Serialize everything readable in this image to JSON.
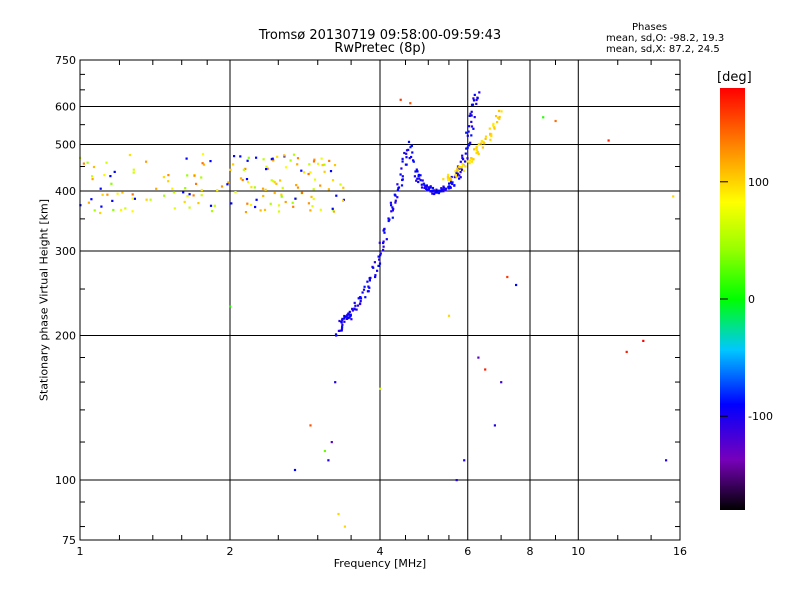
{
  "header": {
    "title1": "Tromsø 20130719 09:58:00-09:59:43",
    "title2": "RwPretec (8p)"
  },
  "stats": {
    "heading": "Phases",
    "line1": "mean, sd,O: -98.2, 19.3",
    "line2": "mean, sd,X:  87.2, 24.5"
  },
  "colorbar": {
    "unit": "[deg]",
    "ticks": [
      "100",
      "0",
      "-100"
    ],
    "tick_values": [
      100,
      0,
      -100
    ],
    "range": [
      -180,
      180
    ]
  },
  "chart_data": {
    "type": "scatter",
    "xscale": "log",
    "yscale": "log",
    "xlabel": "Frequency [MHz]",
    "ylabel": "Stationary phase Virtual Height [km]",
    "xlim": [
      1,
      16
    ],
    "ylim": [
      75,
      750
    ],
    "xticks": [
      1,
      2,
      4,
      6,
      8,
      10,
      16
    ],
    "xtick_labels": [
      "1",
      "2",
      "4",
      "6",
      "8",
      "10",
      "16"
    ],
    "yticks": [
      75,
      100,
      200,
      300,
      400,
      500,
      600,
      750
    ],
    "ytick_labels": [
      "75",
      "100",
      "200",
      "300",
      "400",
      "500",
      "600",
      "750"
    ],
    "grid": true,
    "color_encoding": "phase [deg]",
    "series": [
      {
        "role": "F-region band",
        "x_range": [
          1.0,
          3.4
        ],
        "y_range": [
          360,
          480
        ],
        "phase_range": [
          40,
          140
        ],
        "approx_count": 170
      },
      {
        "role": "F-layer trace",
        "x": [
          3.3,
          3.35,
          3.4,
          3.45,
          3.5,
          3.6,
          3.7,
          3.8,
          3.9,
          4.0,
          4.1,
          4.2,
          4.3,
          4.4,
          4.5,
          4.6,
          4.7,
          4.8,
          4.9,
          5.0,
          5.1,
          5.2,
          5.3,
          5.4,
          5.5,
          5.6,
          5.7,
          5.8,
          5.9,
          6.0,
          6.1,
          6.2,
          6.3
        ],
        "y": [
          200,
          212,
          220,
          218,
          222,
          232,
          242,
          255,
          272,
          295,
          325,
          360,
          390,
          420,
          470,
          500,
          440,
          420,
          410,
          405,
          400,
          400,
          402,
          405,
          410,
          418,
          430,
          445,
          470,
          510,
          560,
          610,
          640
        ],
        "phase": -105
      },
      {
        "role": "X-mode trace",
        "x": [
          5.4,
          5.6,
          5.8,
          6.0,
          6.2,
          6.4,
          6.6,
          6.8,
          7.0
        ],
        "y": [
          420,
          430,
          445,
          460,
          480,
          500,
          520,
          555,
          590
        ],
        "phase": 100
      },
      {
        "role": "scattered echoes",
        "x": [
          2.0,
          2.7,
          2.9,
          3.1,
          3.15,
          3.2,
          3.25,
          3.3,
          3.4,
          4.0,
          4.4,
          4.6,
          5.5,
          5.7,
          5.9,
          6.3,
          6.5,
          6.8,
          7.0,
          7.2,
          7.5,
          8.5,
          9.0,
          11.5,
          12.5,
          13.5,
          15.0,
          15.5
        ],
        "y": [
          230,
          105,
          130,
          115,
          110,
          120,
          160,
          85,
          80,
          155,
          620,
          610,
          220,
          100,
          110,
          180,
          170,
          130,
          160,
          265,
          255,
          570,
          560,
          510,
          185,
          195,
          110,
          390
        ],
        "phase": [
          10,
          -100,
          150,
          30,
          -110,
          -130,
          -110,
          100,
          100,
          70,
          160,
          150,
          100,
          -110,
          -110,
          -130,
          170,
          -110,
          -120,
          160,
          -100,
          10,
          140,
          170,
          170,
          180,
          -110,
          100
        ]
      }
    ]
  }
}
